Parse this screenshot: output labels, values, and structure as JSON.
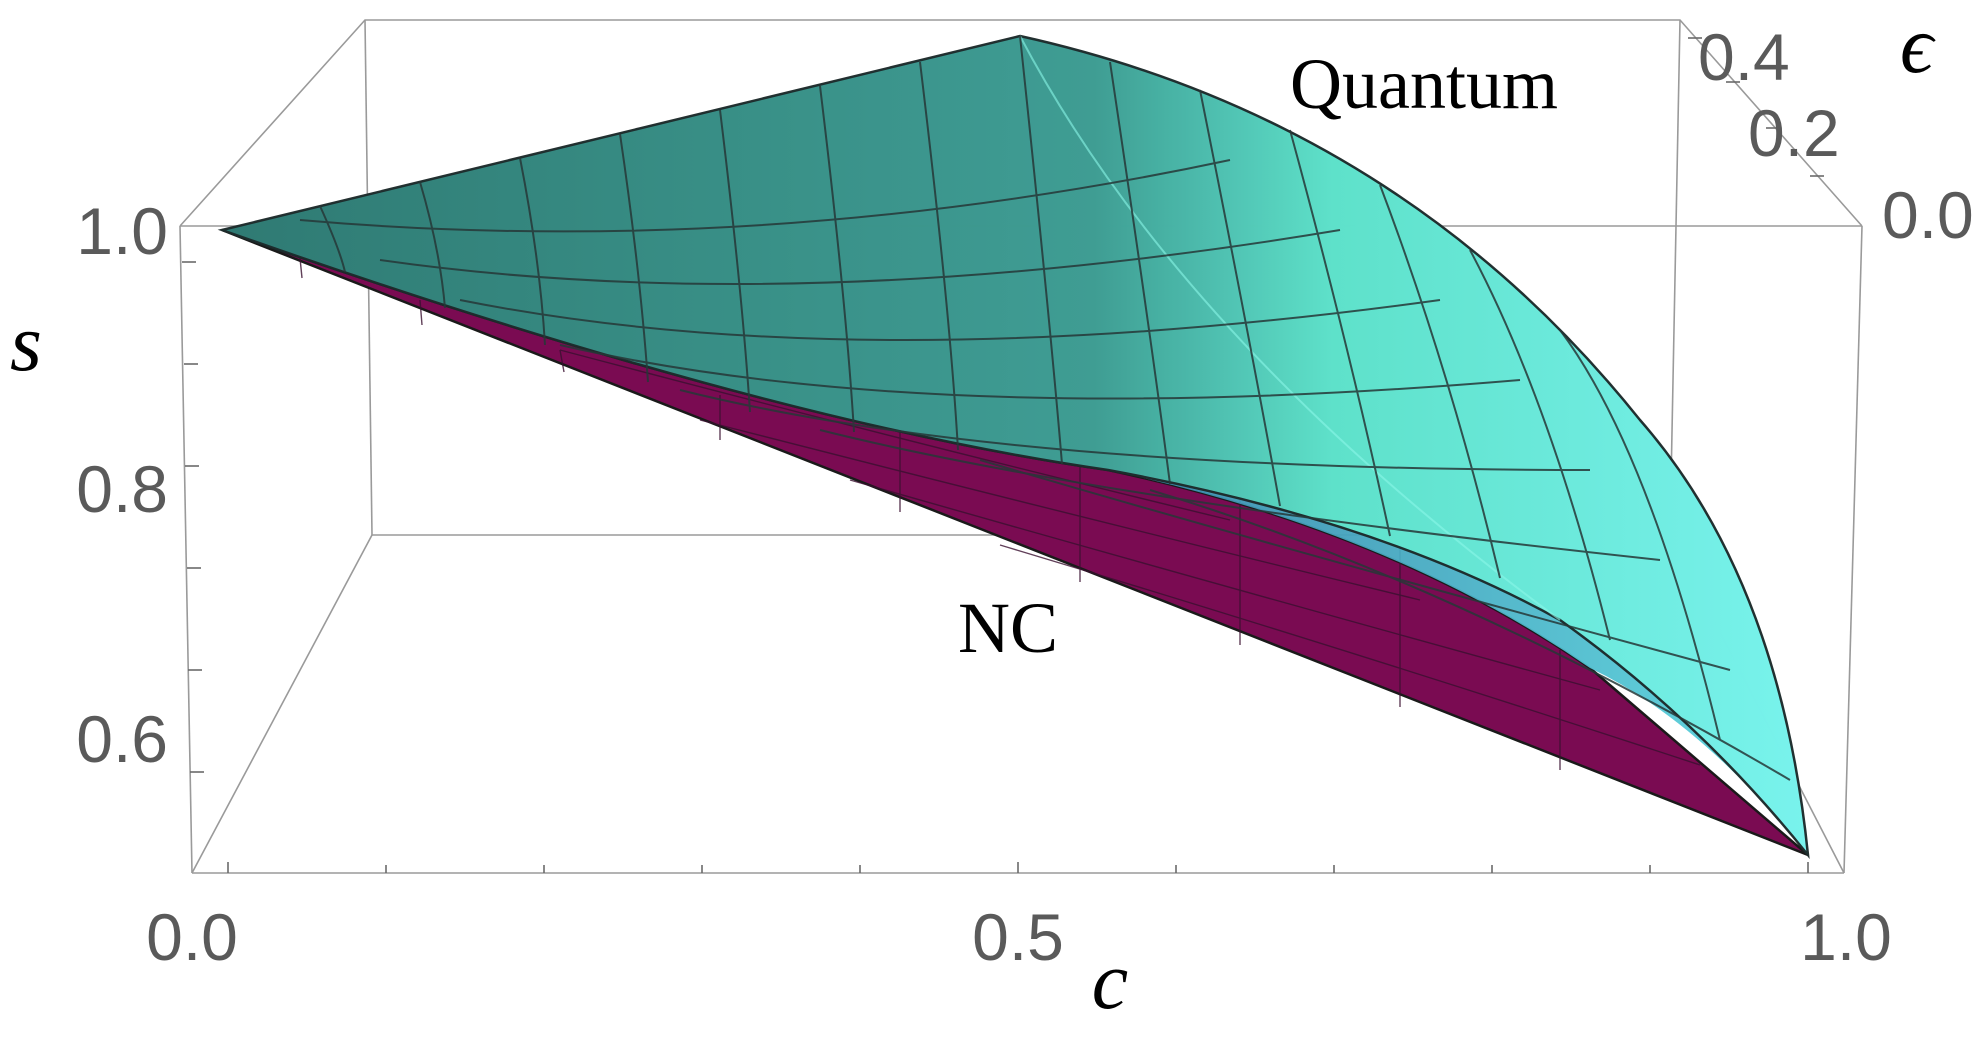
{
  "chart_data": {
    "type": "surface3d",
    "axes": {
      "c": {
        "label": "c",
        "range": [
          0.0,
          1.0
        ],
        "ticks": [
          "0.0",
          "0.5",
          "1.0"
        ]
      },
      "s": {
        "label": "s",
        "range": [
          0.5,
          1.0
        ],
        "ticks": [
          "0.6",
          "0.8",
          "1.0"
        ]
      },
      "epsilon": {
        "label": "ϵ",
        "range": [
          0.0,
          0.5
        ],
        "ticks": [
          "0.0",
          "0.2",
          "0.4"
        ]
      }
    },
    "surfaces": [
      {
        "name": "Quantum",
        "color": "#46e6d0",
        "edge_color": "#2a3a3a",
        "corners": {
          "c0_e0": 1.0,
          "c1_e0": 0.5,
          "c05_e05": 1.0
        }
      },
      {
        "name": "NC",
        "color": "#7a0b52",
        "edge_color": "#1a1a1a",
        "line": {
          "c": [
            0.0,
            1.0
          ],
          "s": [
            1.0,
            0.5
          ]
        }
      }
    ],
    "annotations": [
      "Quantum",
      "NC"
    ],
    "box": true,
    "grid": true
  }
}
